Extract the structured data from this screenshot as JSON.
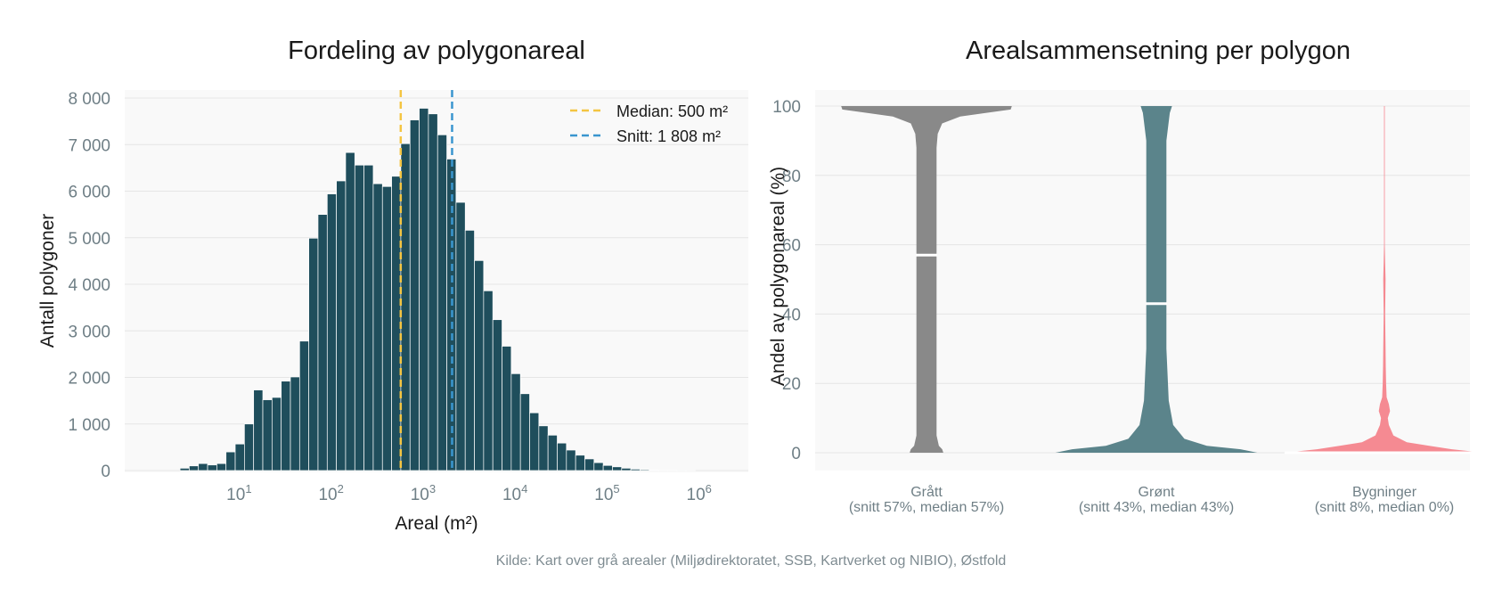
{
  "colors": {
    "background": "#ffffff",
    "panel": "#f9f9f9",
    "grid": "#e6e6e6",
    "bar": "#1f4e5c",
    "median_line": "#f4c542",
    "mean_line": "#3a96cf",
    "violin_grey": "#898989",
    "violin_green": "#5b848b",
    "violin_buildings": "#f58a92",
    "tick_text": "#6f7f86"
  },
  "source": "Kilde: Kart over grå arealer (Miljødirektoratet, SSB, Kartverket og NIBIO), Østfold",
  "chart_data": [
    {
      "type": "bar",
      "subtype": "histogram",
      "title": "Fordeling av polygonareal",
      "xlabel": "Areal (m²)",
      "ylabel": "Antall polygoner",
      "xscale": "log",
      "xlim": [
        0.5,
        3000000
      ],
      "ylim": [
        0,
        8000
      ],
      "yticks": [
        0,
        1000,
        2000,
        3000,
        4000,
        5000,
        6000,
        7000,
        8000
      ],
      "ytick_labels": [
        "0",
        "1 000",
        "2 000",
        "3 000",
        "4 000",
        "5 000",
        "6 000",
        "7 000",
        "8 000"
      ],
      "xticks": [
        {
          "base": "10",
          "exp": "1",
          "value": 10
        },
        {
          "base": "10",
          "exp": "2",
          "value": 100
        },
        {
          "base": "10",
          "exp": "3",
          "value": 1000
        },
        {
          "base": "10",
          "exp": "4",
          "value": 10000
        },
        {
          "base": "10",
          "exp": "5",
          "value": 100000
        },
        {
          "base": "10",
          "exp": "6",
          "value": 1000000
        }
      ],
      "grid": true,
      "bins_log10_start": 0.3,
      "bins_log10_width": 0.1,
      "values": [
        50,
        100,
        150,
        120,
        150,
        400,
        570,
        1000,
        1730,
        1520,
        1570,
        1920,
        2010,
        2780,
        4990,
        5500,
        5940,
        6220,
        6830,
        6560,
        6560,
        6160,
        6100,
        6320,
        7020,
        7530,
        7780,
        7660,
        7210,
        6690,
        5760,
        5160,
        4510,
        3860,
        3240,
        2670,
        2080,
        1650,
        1240,
        960,
        760,
        590,
        440,
        330,
        250,
        170,
        110,
        80,
        50,
        30,
        20,
        10,
        5,
        3,
        2,
        1
      ],
      "reference_lines": [
        {
          "name": "Median",
          "value": 500,
          "label": "Median: 500 m²",
          "style": "dashed"
        },
        {
          "name": "Snitt",
          "value": 1808,
          "label": "Snitt: 1 808 m²",
          "style": "dashed"
        }
      ],
      "legend": "top-right"
    },
    {
      "type": "violin",
      "title": "Arealsammensetning per polygon",
      "ylabel": "Andel av polygonareal (%)",
      "ylim": [
        -5,
        105
      ],
      "yticks": [
        0,
        20,
        40,
        60,
        80,
        100
      ],
      "grid": true,
      "categories": [
        {
          "name": "Grått",
          "summary": "(snitt 57%, median 57%)",
          "mean": 57,
          "median": 57,
          "density_profile": [
            [
              0,
              0.15
            ],
            [
              1,
              0.14
            ],
            [
              2,
              0.11
            ],
            [
              5,
              0.09
            ],
            [
              10,
              0.09
            ],
            [
              20,
              0.09
            ],
            [
              40,
              0.09
            ],
            [
              57,
              0.09
            ],
            [
              70,
              0.09
            ],
            [
              80,
              0.09
            ],
            [
              88,
              0.09
            ],
            [
              92,
              0.1
            ],
            [
              95,
              0.14
            ],
            [
              97,
              0.3
            ],
            [
              99,
              0.75
            ],
            [
              100,
              0.76
            ]
          ]
        },
        {
          "name": "Grønt",
          "summary": "(snitt 43%, median 43%)",
          "mean": 43,
          "median": 43,
          "density_profile": [
            [
              0,
              0.9
            ],
            [
              1,
              0.75
            ],
            [
              2,
              0.45
            ],
            [
              4,
              0.25
            ],
            [
              8,
              0.15
            ],
            [
              15,
              0.11
            ],
            [
              30,
              0.09
            ],
            [
              45,
              0.09
            ],
            [
              60,
              0.09
            ],
            [
              80,
              0.09
            ],
            [
              90,
              0.09
            ],
            [
              98,
              0.12
            ],
            [
              100,
              0.14
            ]
          ]
        },
        {
          "name": "Bygninger",
          "summary": "(snitt 8%, median 0%)",
          "mean": 8,
          "median": 0,
          "density_profile": [
            [
              0,
              0.89
            ],
            [
              1,
              0.6
            ],
            [
              2,
              0.4
            ],
            [
              3,
              0.2
            ],
            [
              5,
              0.08
            ],
            [
              8,
              0.04
            ],
            [
              10,
              0.03
            ],
            [
              12,
              0.05
            ],
            [
              14,
              0.04
            ],
            [
              16,
              0.02
            ],
            [
              20,
              0.015
            ],
            [
              25,
              0.012
            ],
            [
              30,
              0.01
            ],
            [
              40,
              0.006
            ],
            [
              50,
              0.01
            ],
            [
              55,
              0.006
            ],
            [
              60,
              0.003
            ],
            [
              80,
              0.001
            ],
            [
              100,
              0.0005
            ]
          ]
        }
      ]
    }
  ]
}
